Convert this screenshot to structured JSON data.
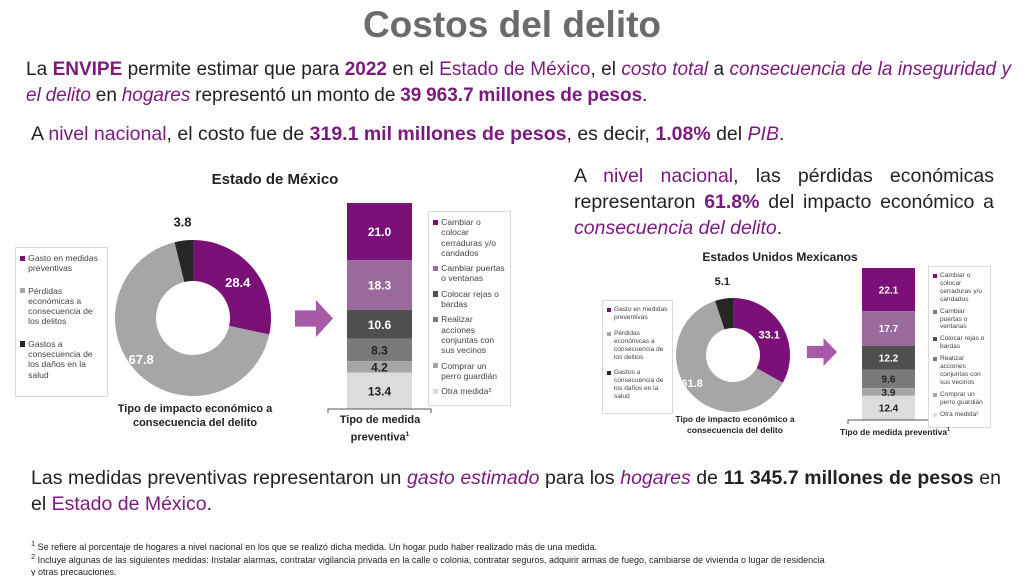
{
  "title": "Costos del delito",
  "para1": {
    "t1": "La ",
    "envipe": "ENVIPE",
    "t2": " permite estimar que para ",
    "year": "2022",
    "t3": " en el ",
    "estado": "Estado de México",
    "t4": ", el ",
    "costo": "costo total",
    "t5": " a ",
    "consec": "consecuencia de la inseguridad y el delito",
    "t6": " en ",
    "hogares": "hogares",
    "t7": " representó un monto de ",
    "monto": "39 963.7 millones de pesos",
    "t8": "."
  },
  "para2": {
    "t1": "A ",
    "nivel": "nivel nacional",
    "t2": ", el costo fue de ",
    "monto": "319.1 mil millones de pesos",
    "t3": ", es decir, ",
    "pct": "1.08%",
    "t4": " del ",
    "pib": "PIB",
    "t5": "."
  },
  "para3": {
    "t1": "A ",
    "nivel": "nivel nacional",
    "t2": ", las pérdidas económicas representaron ",
    "pct": "61.8%",
    "t3": " del impacto económico a ",
    "consec": "consecuencia del delito",
    "t4": "."
  },
  "para4": {
    "t1": "Las medidas preventivas representaron un ",
    "gasto": "gasto estimado",
    "t2": " para los ",
    "hogares": "hogares",
    "t3": " de ",
    "monto": "11 345.7 millones de pesos",
    "t4": " en el ",
    "estado": "Estado de México",
    "t5": "."
  },
  "footnotes": [
    {
      "sup": "1",
      "text": " Se refiere al porcentaje de hogares a nivel nacional en los que se realizó dicha medida. Un hogar pudo haber realizado más de una medida."
    },
    {
      "sup": "2",
      "text": " Incluye algunas de las siguientes medidas: Instalar alarmas, contratar vigilancia privada en la calle o colonia, contratar seguros, adquirir armas de fuego, cambiarse de vivienda o lugar de residencia y otras precauciones."
    }
  ],
  "colors": {
    "accent": "#7b1a7e",
    "text": "#222222",
    "title": "#6b6b6b",
    "arrow": "#a65aa8"
  },
  "chart_data": [
    {
      "panel": "Estado de México",
      "title": "Estado de México",
      "charts": [
        {
          "type": "pie",
          "variant": "donut",
          "xlabel": "Tipo de impacto económico a consecuencia del delito",
          "legend_position": "left",
          "categories": [
            "Gasto en medidas preventivas",
            "Pérdidas económicas a consecuencia de los delitos",
            "Gastos a consecuencia de los daños en la salud"
          ],
          "values": [
            28.4,
            67.8,
            3.8
          ],
          "colors": [
            "#7b1078",
            "#a6a6a6",
            "#262626"
          ]
        },
        {
          "type": "bar",
          "variant": "stacked",
          "xlabel": "Tipo de medida preventiva",
          "xlabel_sup": "1",
          "legend_position": "right",
          "categories": [
            "Cambiar o colocar cerraduras y/o candados",
            "Cambiar puertas o ventanas",
            "Colocar rejas o bardas",
            "Realizar acciones conjuntas con sus vecinos",
            "Comprar un perro guardián",
            "Otra medida²"
          ],
          "values": [
            21.0,
            18.3,
            10.6,
            8.3,
            4.2,
            13.4
          ],
          "labels": [
            "21.0",
            "18.3",
            "10.6",
            "8.3",
            "4.2",
            "13.4"
          ],
          "colors": [
            "#7b1078",
            "#9b6a9c",
            "#4f4f4f",
            "#7a7a7a",
            "#a6a6a6",
            "#dcdcdc"
          ]
        }
      ]
    },
    {
      "panel": "Estados Unidos Mexicanos",
      "title": "Estados Unidos Mexicanos",
      "charts": [
        {
          "type": "pie",
          "variant": "donut",
          "xlabel": "Tipo de impacto económico a consecuencia del delito",
          "legend_position": "left",
          "categories": [
            "Gasto en medidas preventivas",
            "Pérdidas económicas a consecuencia de los delitos",
            "Gastos a consecuencia de los daños en la salud"
          ],
          "values": [
            33.1,
            61.8,
            5.1
          ],
          "colors": [
            "#7b1078",
            "#a6a6a6",
            "#262626"
          ]
        },
        {
          "type": "bar",
          "variant": "stacked",
          "xlabel": "Tipo de medida preventiva",
          "xlabel_sup": "1",
          "legend_position": "right",
          "categories": [
            "Cambiar o colocar cerraduras y/o candados",
            "Cambiar puertas o ventanas",
            "Colocar rejas o bardas",
            "Realizar acciones conjuntas con sus vecinos",
            "Comprar un perro guardián",
            "Otra medida²"
          ],
          "values": [
            22.1,
            17.7,
            12.2,
            9.6,
            3.9,
            12.4
          ],
          "labels": [
            "22.1",
            "17.7",
            "12.2",
            "9.6",
            "3.9",
            "12.4"
          ],
          "colors": [
            "#7b1078",
            "#9b6a9c",
            "#4f4f4f",
            "#7a7a7a",
            "#a6a6a6",
            "#dcdcdc"
          ]
        }
      ]
    }
  ]
}
